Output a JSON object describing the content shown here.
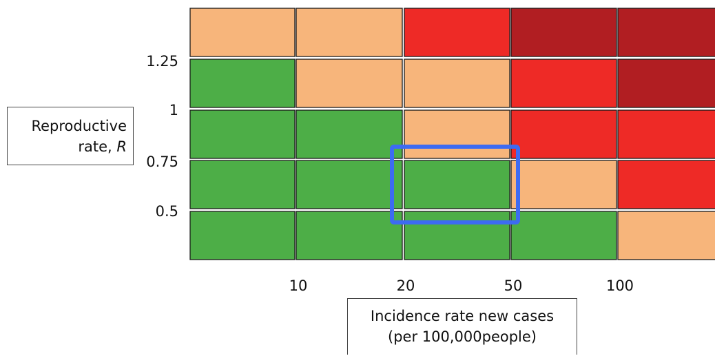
{
  "chart_data": {
    "type": "heatmap",
    "x_ticks": [
      "10",
      "20",
      "50",
      "100"
    ],
    "y_ticks": [
      "1.25",
      "1",
      "0.75",
      "0.5"
    ],
    "xlabel": [
      "Incidence rate new cases",
      "(per 100,000people)"
    ],
    "ylabel": {
      "text": "Reproductive",
      "line2": "rate, ",
      "symbol": "R"
    },
    "color_key": {
      "green": "#4dae47",
      "orange": "#f7b57b",
      "red": "#ee2a26",
      "darkred": "#b11e22"
    },
    "rows_top_to_bottom": [
      [
        "orange",
        "orange",
        "red",
        "darkred",
        "darkred"
      ],
      [
        "green",
        "orange",
        "orange",
        "red",
        "darkred"
      ],
      [
        "green",
        "green",
        "orange",
        "red",
        "red"
      ],
      [
        "green",
        "green",
        "green",
        "orange",
        "red"
      ],
      [
        "green",
        "green",
        "green",
        "green",
        "orange"
      ]
    ],
    "highlight": {
      "row": 3,
      "col": 2,
      "color": "#3d6bf2"
    }
  }
}
